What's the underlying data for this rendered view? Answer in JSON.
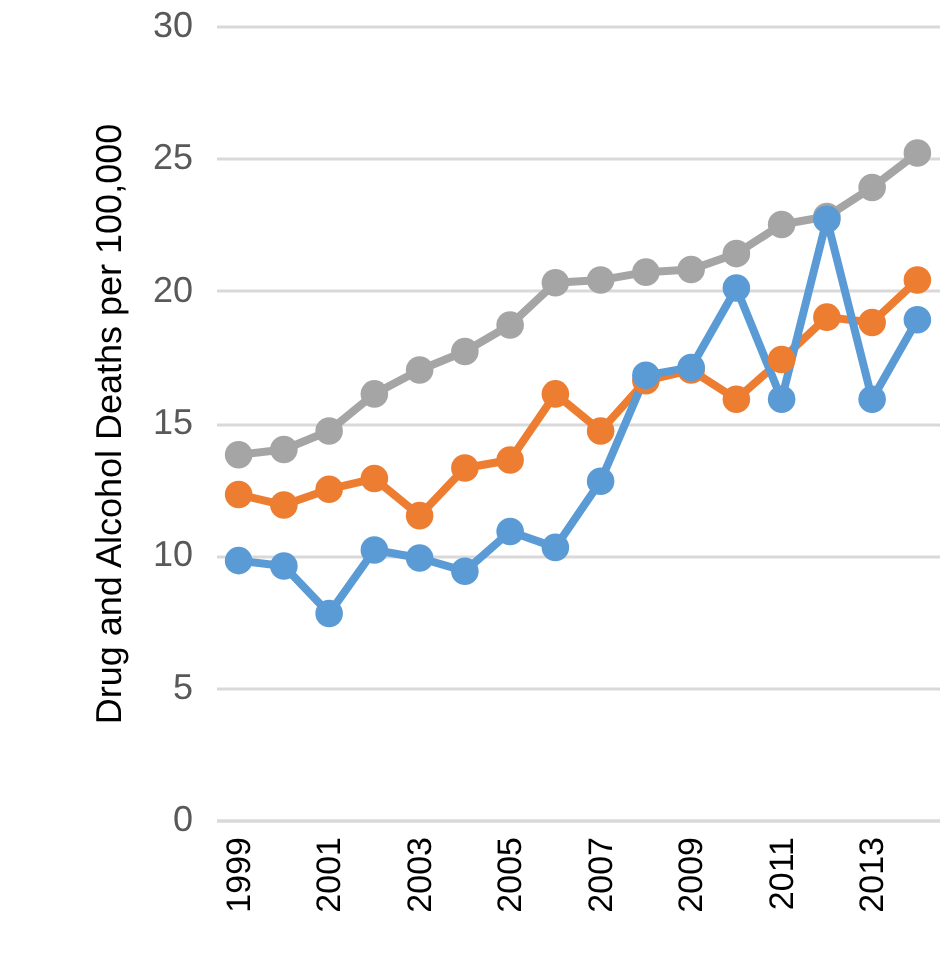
{
  "chart_data": {
    "type": "line",
    "ylabel": "Drug and Alcohol Deaths per 100,000",
    "categories": [
      "1999",
      null,
      "2001",
      null,
      "2003",
      null,
      "2005",
      null,
      "2007",
      null,
      "2009",
      null,
      "2011",
      null,
      "2013",
      null
    ],
    "series": [
      {
        "color": "#a5a5a5",
        "values": [
          13.8,
          14.0,
          14.7,
          16.1,
          17.0,
          17.7,
          18.7,
          20.3,
          20.4,
          20.7,
          20.8,
          21.4,
          22.5,
          22.8,
          23.9,
          25.2
        ]
      },
      {
        "color": "#ed7d31",
        "values": [
          12.3,
          11.9,
          12.5,
          12.9,
          11.5,
          13.3,
          13.6,
          16.1,
          14.7,
          16.6,
          17.0,
          15.9,
          17.4,
          19.0,
          18.8,
          20.4
        ]
      },
      {
        "color": "#5b9bd5",
        "values": [
          9.8,
          9.6,
          7.8,
          10.2,
          9.9,
          9.4,
          10.9,
          10.3,
          12.8,
          16.8,
          17.1,
          20.1,
          15.9,
          22.7,
          15.9,
          18.9
        ]
      }
    ],
    "ylim": [
      0,
      30
    ],
    "yticks": [
      0,
      5,
      10,
      15,
      20,
      25,
      30
    ],
    "grid": "y",
    "marker": "circle",
    "line_style": "solid"
  }
}
